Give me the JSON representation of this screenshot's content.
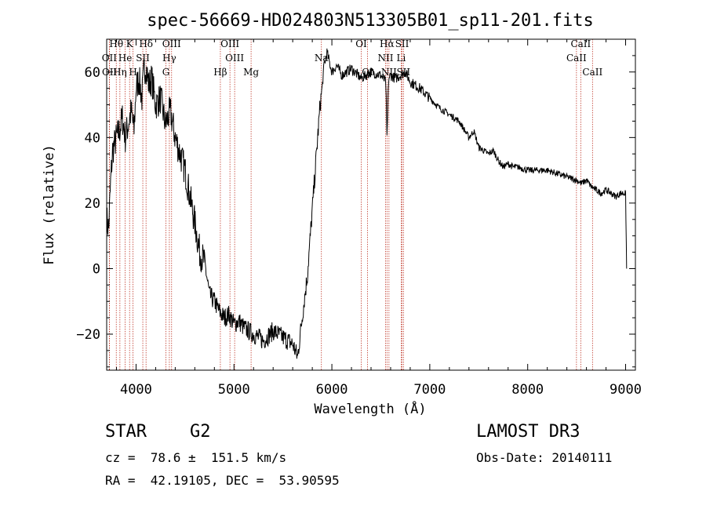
{
  "chart_data": {
    "type": "line",
    "title": "spec-56669-HD024803N513305B01_sp11-201.fits",
    "xlabel": "Wavelength (Å)",
    "ylabel": "Flux (relative)",
    "xlim": [
      3700,
      9100
    ],
    "ylim": [
      -31,
      70
    ],
    "xticks": [
      4000,
      5000,
      6000,
      7000,
      8000,
      9000
    ],
    "xtick_labels": [
      "4000",
      "5000",
      "6000",
      "7000",
      "8000",
      "9000"
    ],
    "yticks": [
      -20,
      0,
      20,
      40,
      60
    ],
    "ytick_labels": [
      "−20",
      "0",
      "20",
      "40",
      "60"
    ],
    "series": [
      {
        "name": "flux",
        "x": [
          3700,
          3720,
          3740,
          3760,
          3780,
          3800,
          3830,
          3860,
          3890,
          3920,
          3950,
          3980,
          4000,
          4030,
          4060,
          4080,
          4100,
          4130,
          4160,
          4200,
          4250,
          4300,
          4350,
          4400,
          4450,
          4500,
          4550,
          4600,
          4650,
          4700,
          4750,
          4800,
          4850,
          4900,
          4950,
          5000,
          5050,
          5100,
          5200,
          5300,
          5400,
          5500,
          5600,
          5650,
          5700,
          5750,
          5800,
          5850,
          5880,
          5900,
          5920,
          5950,
          6000,
          6050,
          6100,
          6200,
          6300,
          6400,
          6500,
          6550,
          6563,
          6580,
          6600,
          6650,
          6700,
          6750,
          6800,
          6900,
          7000,
          7100,
          7200,
          7300,
          7400,
          7450,
          7500,
          7550,
          7600,
          7650,
          7700,
          7750,
          7800,
          7850,
          7900,
          8000,
          8100,
          8200,
          8300,
          8400,
          8500,
          8550,
          8600,
          8650,
          8700,
          8750,
          8800,
          8850,
          8900,
          8950,
          9000,
          9010
        ],
        "y": [
          15,
          12,
          26,
          36,
          38,
          40,
          42,
          46,
          40,
          44,
          48,
          42,
          55,
          58,
          52,
          60,
          62,
          56,
          58,
          50,
          52,
          44,
          48,
          40,
          35,
          30,
          22,
          14,
          5,
          2,
          -8,
          -10,
          -13,
          -15,
          -14,
          -17,
          -16,
          -18,
          -20,
          -22,
          -19,
          -21,
          -23,
          -27,
          -14,
          -2,
          18,
          38,
          50,
          55,
          62,
          66,
          60,
          62,
          59,
          61,
          58,
          60,
          59,
          57,
          40,
          58,
          59,
          58,
          59,
          60,
          57,
          55,
          52,
          49,
          47,
          45,
          40,
          42,
          37,
          36,
          35,
          36,
          33,
          31,
          32,
          31,
          31,
          30,
          30,
          30,
          29,
          28,
          27,
          26,
          27,
          25,
          24,
          23,
          24,
          23,
          22,
          23,
          23,
          0
        ]
      }
    ],
    "line_ids": [
      {
        "label": "Hθ",
        "x": 3798,
        "row": 0
      },
      {
        "label": "K",
        "x": 3934,
        "row": 0
      },
      {
        "label": "Hδ",
        "x": 4102,
        "row": 0
      },
      {
        "label": "OIII",
        "x": 4363,
        "row": 0
      },
      {
        "label": "OIII",
        "x": 4959,
        "row": 0
      },
      {
        "label": "OI",
        "x": 6300,
        "row": 0
      },
      {
        "label": "Hα",
        "x": 6563,
        "row": 0
      },
      {
        "label": "SII",
        "x": 6717,
        "row": 0
      },
      {
        "label": "CaII",
        "x": 8542,
        "row": 0
      },
      {
        "label": "OII",
        "x": 3727,
        "row": 1
      },
      {
        "label": "He",
        "x": 3889,
        "row": 1
      },
      {
        "label": "SII",
        "x": 4069,
        "row": 1
      },
      {
        "label": "Hγ",
        "x": 4340,
        "row": 1
      },
      {
        "label": "OIII",
        "x": 5007,
        "row": 1
      },
      {
        "label": "Na",
        "x": 5893,
        "row": 1
      },
      {
        "label": "NII",
        "x": 6548,
        "row": 1
      },
      {
        "label": "Li",
        "x": 6708,
        "row": 1
      },
      {
        "label": "CaII",
        "x": 8498,
        "row": 1
      },
      {
        "label": "OII",
        "x": 3729,
        "row": 2
      },
      {
        "label": "Hη",
        "x": 3835,
        "row": 2
      },
      {
        "label": "H",
        "x": 3969,
        "row": 2
      },
      {
        "label": "G",
        "x": 4305,
        "row": 2
      },
      {
        "label": "Hβ",
        "x": 4861,
        "row": 2
      },
      {
        "label": "Mg",
        "x": 5175,
        "row": 2
      },
      {
        "label": "OI",
        "x": 6364,
        "row": 2
      },
      {
        "label": "NII",
        "x": 6583,
        "row": 2
      },
      {
        "label": "SII",
        "x": 6731,
        "row": 2
      },
      {
        "label": "CaII",
        "x": 8662,
        "row": 2
      }
    ]
  },
  "info": {
    "object_class": "STAR",
    "subclass": "G2",
    "survey": "LAMOST DR3",
    "redshift": "cz =  78.6 ±  151.5 km/s",
    "obs_date": "Obs-Date: 20140111",
    "coords": "RA =  42.19105, DEC =  53.90595"
  }
}
